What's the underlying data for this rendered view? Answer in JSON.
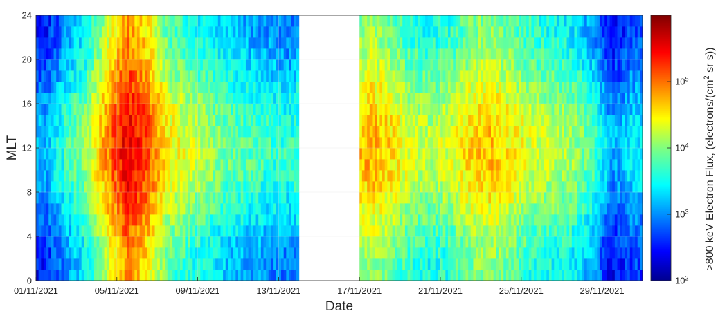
{
  "chart_data": {
    "type": "heatmap",
    "xlabel": "Date",
    "ylabel": "MLT",
    "x_ticks": [
      "01/11/2021",
      "05/11/2021",
      "09/11/2021",
      "13/11/2021",
      "17/11/2021",
      "21/11/2021",
      "25/11/2021",
      "29/11/2021"
    ],
    "x_range": [
      "01/11/2021",
      "01/12/2021"
    ],
    "y_ticks": [
      0,
      4,
      8,
      12,
      16,
      20,
      24
    ],
    "ylim": [
      0,
      24
    ],
    "data_gap": [
      "14/11/2021",
      "16/11/2021"
    ],
    "colorbar": {
      "label": ">800 keV Electron Flux, (electrons/(cm",
      "label_superscript": "2",
      "label_end": " sr s))",
      "scale": "log",
      "range": [
        100,
        1000000
      ],
      "ticks": [
        {
          "base": "10",
          "exp": "2",
          "value": 100
        },
        {
          "base": "10",
          "exp": "3",
          "value": 1000
        },
        {
          "base": "10",
          "exp": "4",
          "value": 10000
        },
        {
          "base": "10",
          "exp": "5",
          "value": 100000
        }
      ],
      "colormap": "jet"
    },
    "series": [
      {
        "date": "01/11/2021",
        "log10_flux": 2.9
      },
      {
        "date": "02/11/2021",
        "log10_flux": 3.4
      },
      {
        "date": "03/11/2021",
        "log10_flux": 3.8
      },
      {
        "date": "04/11/2021",
        "log10_flux": 4.6
      },
      {
        "date": "05/11/2021",
        "log10_flux": 5.3
      },
      {
        "date": "06/11/2021",
        "log10_flux": 4.9
      },
      {
        "date": "07/11/2021",
        "log10_flux": 4.2
      },
      {
        "date": "08/11/2021",
        "log10_flux": 4.0
      },
      {
        "date": "09/11/2021",
        "log10_flux": 3.8
      },
      {
        "date": "10/11/2021",
        "log10_flux": 3.6
      },
      {
        "date": "11/11/2021",
        "log10_flux": 3.5
      },
      {
        "date": "12/11/2021",
        "log10_flux": 3.4
      },
      {
        "date": "13/11/2021",
        "log10_flux": 3.3
      },
      {
        "date": "17/11/2021",
        "log10_flux": 4.5
      },
      {
        "date": "18/11/2021",
        "log10_flux": 4.3
      },
      {
        "date": "19/11/2021",
        "log10_flux": 4.0
      },
      {
        "date": "20/11/2021",
        "log10_flux": 3.9
      },
      {
        "date": "21/11/2021",
        "log10_flux": 4.0
      },
      {
        "date": "22/11/2021",
        "log10_flux": 4.3
      },
      {
        "date": "23/11/2021",
        "log10_flux": 4.4
      },
      {
        "date": "24/11/2021",
        "log10_flux": 4.2
      },
      {
        "date": "25/11/2021",
        "log10_flux": 4.0
      },
      {
        "date": "26/11/2021",
        "log10_flux": 3.9
      },
      {
        "date": "27/11/2021",
        "log10_flux": 3.8
      },
      {
        "date": "28/11/2021",
        "log10_flux": 3.5
      },
      {
        "date": "29/11/2021",
        "log10_flux": 2.8
      },
      {
        "date": "30/11/2021",
        "log10_flux": 3.1
      }
    ]
  }
}
